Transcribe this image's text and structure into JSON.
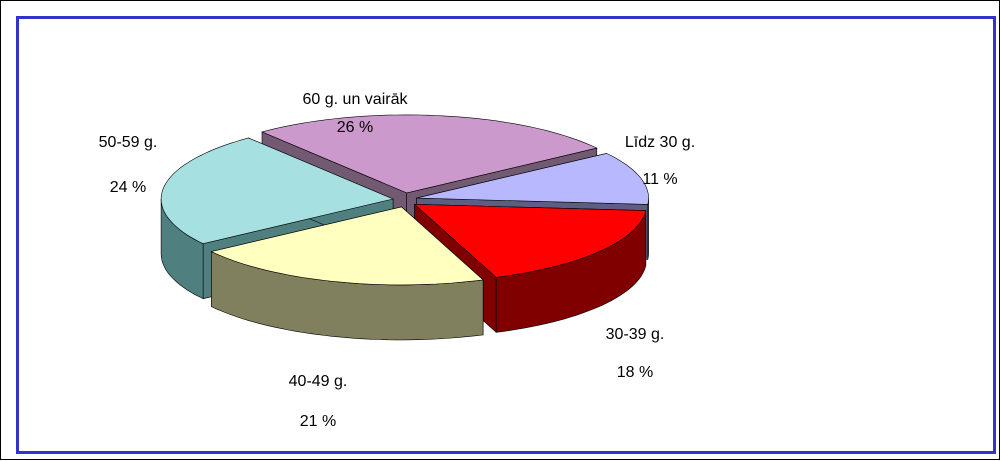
{
  "chart_data": {
    "type": "pie3d",
    "categories": [
      "Līdz 30 g.",
      "30-39 g.",
      "40-49 g.",
      "50-59 g.",
      "60 g. un vairāk"
    ],
    "values": [
      11,
      18,
      21,
      24,
      26
    ],
    "value_labels": [
      "11 %",
      "18 %",
      "21 %",
      "24 %",
      "26 %"
    ],
    "colors": [
      "#b8b8ff",
      "#ff0000",
      "#ffffc0",
      "#a6e0e0",
      "#cc99cc"
    ],
    "side_colors": [
      "#5e5e82",
      "#800000",
      "#80805e",
      "#4f7f7f",
      "#735a73"
    ]
  }
}
